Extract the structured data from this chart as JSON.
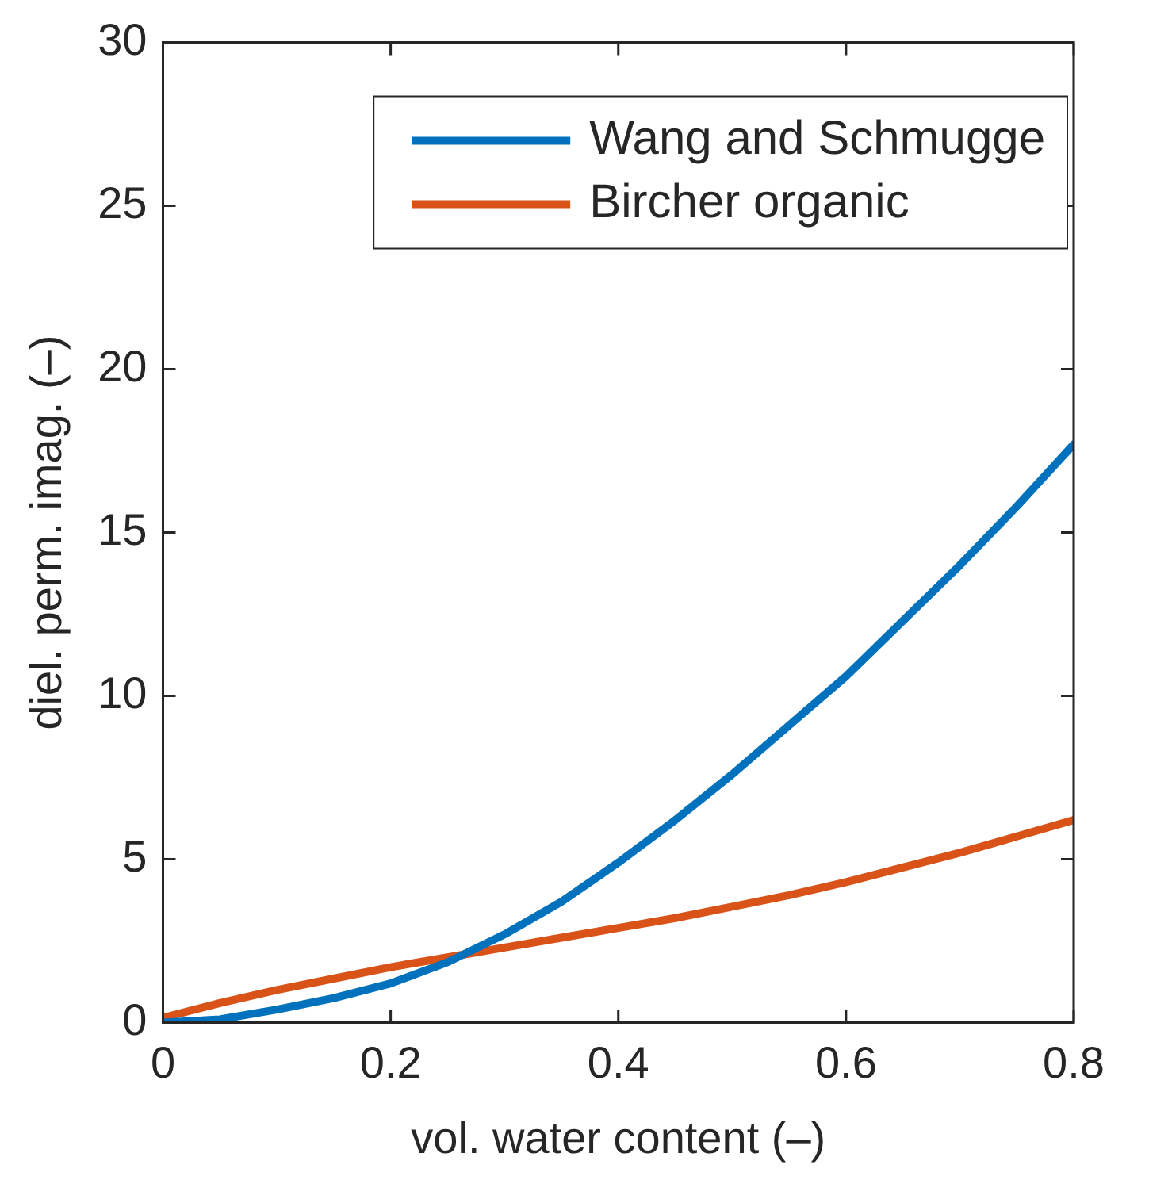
{
  "chart_data": {
    "type": "line",
    "xlabel": "vol. water content (–)",
    "ylabel": "diel. perm. imag. (–)",
    "x": [
      0,
      0.05,
      0.1,
      0.15,
      0.2,
      0.25,
      0.3,
      0.35,
      0.4,
      0.45,
      0.5,
      0.55,
      0.6,
      0.65,
      0.7,
      0.75,
      0.8
    ],
    "series": [
      {
        "name": "Wang and Schmugge",
        "color": "#0072bd",
        "values": [
          0,
          0.1,
          0.4,
          0.75,
          1.2,
          1.85,
          2.7,
          3.7,
          4.9,
          6.2,
          7.6,
          9.1,
          10.6,
          12.3,
          14,
          15.8,
          17.7
        ]
      },
      {
        "name": "Bircher organic",
        "color": "#d95319",
        "values": [
          0.15,
          0.6,
          1,
          1.35,
          1.7,
          2,
          2.3,
          2.6,
          2.9,
          3.2,
          3.55,
          3.9,
          4.3,
          4.75,
          5.2,
          5.7,
          6.2
        ]
      }
    ],
    "xlim": [
      0,
      0.8
    ],
    "xticks": [
      0,
      0.2,
      0.4,
      0.6,
      0.8
    ],
    "ylim": [
      0,
      30
    ],
    "yticks": [
      0,
      5,
      10,
      15,
      20,
      25,
      30
    ],
    "grid": false,
    "legend": "top right",
    "marker": "none",
    "line_style": "solid"
  }
}
